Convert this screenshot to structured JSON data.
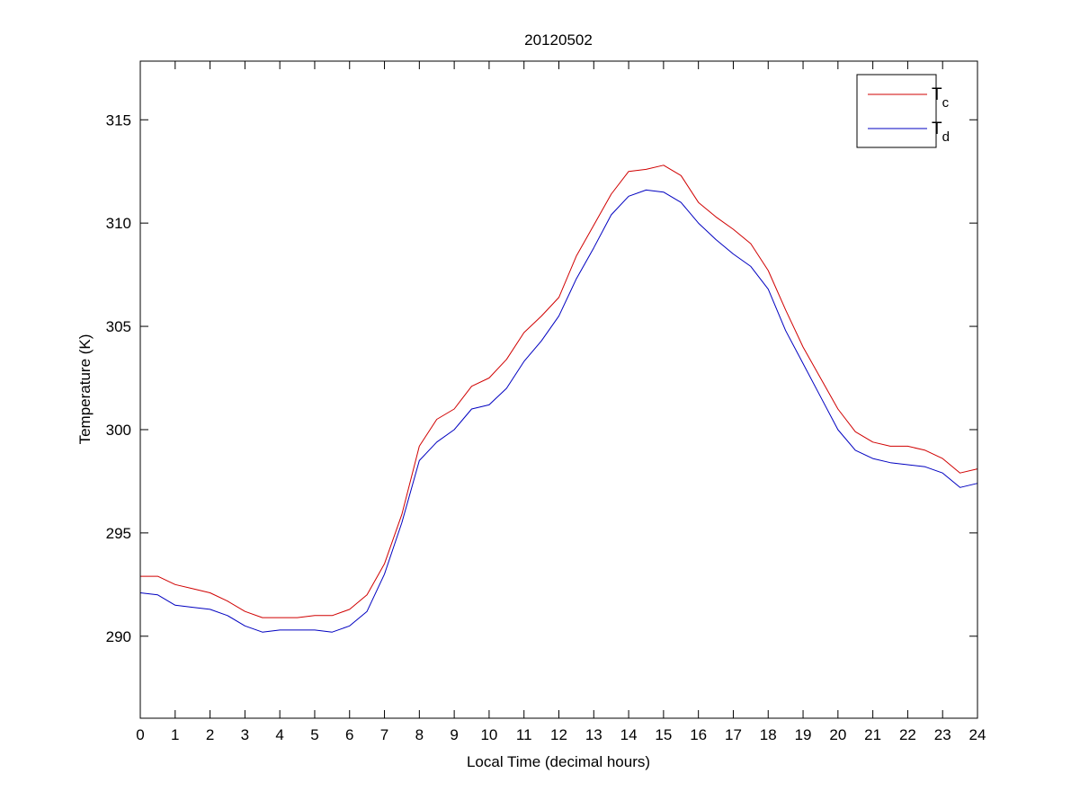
{
  "chart_data": {
    "type": "line",
    "title": "20120502",
    "xlabel": "Local Time (decimal hours)",
    "ylabel": "Temperature (K)",
    "xlim": [
      0,
      24
    ],
    "ylim": [
      286.03,
      317.84
    ],
    "xticks": [
      0,
      1,
      2,
      3,
      4,
      5,
      6,
      7,
      8,
      9,
      10,
      11,
      12,
      13,
      14,
      15,
      16,
      17,
      18,
      19,
      20,
      21,
      22,
      23,
      24
    ],
    "yticks": [
      290,
      295,
      300,
      305,
      310,
      315
    ],
    "grid": false,
    "legend": {
      "placement": "top-right",
      "entries": [
        {
          "base": "T",
          "sub": "c",
          "color": "#d00000"
        },
        {
          "base": "T",
          "sub": "d",
          "color": "#0000c0"
        }
      ]
    },
    "x": [
      0,
      0.5,
      1,
      1.5,
      2,
      2.5,
      3,
      3.5,
      4,
      4.5,
      5,
      5.5,
      6,
      6.5,
      7,
      7.5,
      8,
      8.5,
      9,
      9.5,
      10,
      10.5,
      11,
      11.5,
      12,
      12.5,
      13,
      13.5,
      14,
      14.5,
      15,
      15.5,
      16,
      16.5,
      17,
      17.5,
      18,
      18.5,
      19,
      19.5,
      20,
      20.5,
      21,
      21.5,
      22,
      22.5,
      23,
      23.5,
      24
    ],
    "series": [
      {
        "name": "Tc",
        "color": "#d00000",
        "values": [
          292.9,
          292.9,
          292.5,
          292.3,
          292.1,
          291.7,
          291.2,
          290.9,
          290.9,
          290.9,
          291.0,
          291.0,
          291.3,
          292.0,
          293.5,
          295.9,
          299.2,
          300.5,
          301.0,
          302.1,
          302.5,
          303.4,
          304.7,
          305.5,
          306.4,
          308.4,
          309.9,
          311.4,
          312.5,
          312.6,
          312.8,
          312.3,
          311.0,
          310.3,
          309.7,
          309.0,
          307.7,
          305.8,
          304.0,
          302.5,
          301.0,
          299.9,
          299.4,
          299.2,
          299.2,
          299.0,
          298.6,
          297.9,
          298.1
        ]
      },
      {
        "name": "Td",
        "color": "#0000c0",
        "values": [
          292.1,
          292.0,
          291.5,
          291.4,
          291.3,
          291.0,
          290.5,
          290.2,
          290.3,
          290.3,
          290.3,
          290.2,
          290.5,
          291.2,
          293.0,
          295.5,
          298.5,
          299.4,
          300.0,
          301.0,
          301.2,
          302.0,
          303.3,
          304.3,
          305.5,
          307.3,
          308.8,
          310.4,
          311.3,
          311.6,
          311.5,
          311.0,
          310.0,
          309.2,
          308.5,
          307.9,
          306.8,
          304.8,
          303.2,
          301.6,
          300.0,
          299.0,
          298.6,
          298.4,
          298.3,
          298.2,
          297.9,
          297.2,
          297.4
        ]
      }
    ]
  }
}
